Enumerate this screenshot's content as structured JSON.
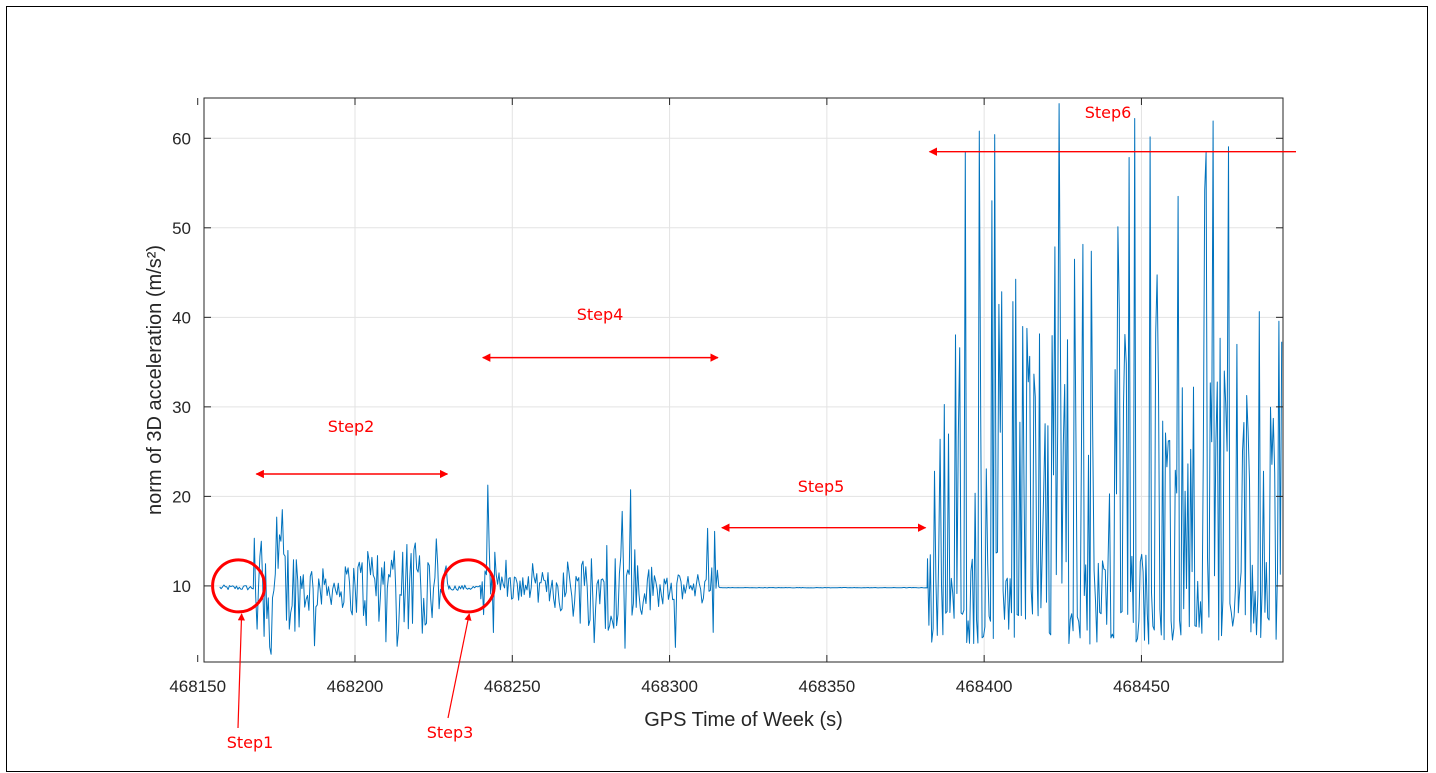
{
  "chart_data": {
    "type": "line",
    "xlabel": "GPS Time of Week (s)",
    "ylabel": "norm of 3D acceleration (m/s²)",
    "xlim": [
      468152,
      468495
    ],
    "ylim": [
      1.5,
      64.5
    ],
    "xticks": [
      468150,
      468200,
      468250,
      468300,
      468350,
      468400,
      468450
    ],
    "xtick_labels": [
      "468150",
      "468200",
      "468250",
      "468300",
      "468350",
      "468400",
      "468450"
    ],
    "yticks": [
      10,
      20,
      30,
      40,
      50,
      60
    ],
    "ytick_labels": [
      "10",
      "20",
      "30",
      "40",
      "50",
      "60"
    ],
    "grid": true,
    "line_color": "#0072bd",
    "annotation_color": "#ff0000",
    "series": [
      {
        "segments": [
          {
            "x_start": 468157,
            "x_end": 468168,
            "baseline": 9.8,
            "amplitude": 0.3,
            "peak_max": 10.3
          },
          {
            "x_start": 468168,
            "x_end": 468230,
            "baseline": 9.8,
            "amplitude": 5,
            "peak_max": 24.5,
            "min": 1.5
          },
          {
            "x_start": 468230,
            "x_end": 468240,
            "baseline": 9.8,
            "amplitude": 0.3,
            "peak_max": 10.3
          },
          {
            "x_start": 468240,
            "x_end": 468316,
            "baseline": 9.8,
            "amplitude": 3.5,
            "peak_max": 26.8,
            "min": 3
          },
          {
            "x_start": 468316,
            "x_end": 468382,
            "baseline": 9.8,
            "amplitude": 0.05,
            "peak_max": 9.9
          },
          {
            "x_start": 468382,
            "x_end": 468495,
            "baseline": 9.8,
            "amplitude": 30,
            "peak_max": 64,
            "min": 3.5
          }
        ]
      }
    ],
    "annotations": [
      {
        "label": "Step1",
        "type": "circle",
        "x": 468163,
        "y": 10
      },
      {
        "label": "Step2",
        "type": "double-arrow",
        "x_start": 468168,
        "x_end": 468230,
        "y": 22.5
      },
      {
        "label": "Step3",
        "type": "circle",
        "x": 468236,
        "y": 10
      },
      {
        "label": "Step4",
        "type": "double-arrow",
        "x_start": 468240,
        "x_end": 468316,
        "y": 35.5
      },
      {
        "label": "Step5",
        "type": "double-arrow",
        "x_start": 468316,
        "x_end": 468382,
        "y": 16.5
      },
      {
        "label": "Step6",
        "type": "left-arrow",
        "x_start": 468382,
        "x_end": 468500,
        "y": 58.5
      }
    ]
  }
}
